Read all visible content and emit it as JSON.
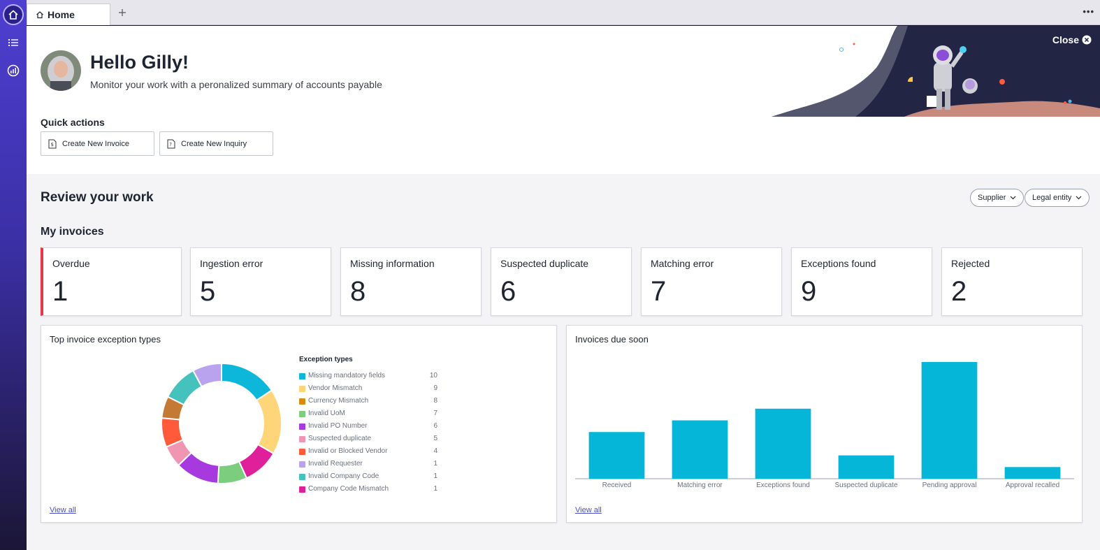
{
  "tabs": {
    "home_label": "Home"
  },
  "header": {
    "greeting": "Hello Gilly!",
    "subtitle": "Monitor your work with a peronalized summary of accounts payable",
    "close_label": "Close"
  },
  "quick_actions": {
    "title": "Quick actions",
    "buttons": [
      {
        "label": "Create New Invoice"
      },
      {
        "label": "Create New Inquiry"
      }
    ]
  },
  "review": {
    "title": "Review your work",
    "filters": [
      {
        "label": "Supplier"
      },
      {
        "label": "Legal entity"
      }
    ]
  },
  "invoices": {
    "title": "My invoices",
    "stats": [
      {
        "label": "Overdue",
        "value": "1"
      },
      {
        "label": "Ingestion error",
        "value": "5"
      },
      {
        "label": "Missing information",
        "value": "8"
      },
      {
        "label": "Suspected duplicate",
        "value": "6"
      },
      {
        "label": "Matching error",
        "value": "7"
      },
      {
        "label": "Exceptions found",
        "value": "9"
      },
      {
        "label": "Rejected",
        "value": "2"
      }
    ]
  },
  "exceptions_panel": {
    "title": "Top invoice exception types",
    "view_all": "View all"
  },
  "due_panel": {
    "title": "Invoices due soon",
    "view_all": "View all"
  },
  "colors": {
    "accent": "#4f3fd1",
    "alert": "#e23a4c",
    "bar": "#06b6d9",
    "link": "#4a4fc8"
  },
  "chart_data": [
    {
      "type": "pie",
      "legend_title": "Exception types",
      "categories": [
        "Missing mandatory fields",
        "Vendor Mismatch",
        "Currency Mismatch",
        "Invalid UoM",
        "Invalid PO Number",
        "Suspected duplicate",
        "Invalid or Blocked Vendor",
        "Invalid Requester",
        "Invalid Company Code",
        "Company Code Mismatch"
      ],
      "values": [
        10,
        9,
        8,
        7,
        6,
        5,
        4,
        1,
        1,
        1
      ],
      "chart_values": [
        8,
        9,
        5,
        4,
        6,
        3,
        4,
        3,
        5,
        4
      ],
      "chart_order": [
        0,
        1,
        9,
        3,
        4,
        5,
        6,
        2,
        8,
        7
      ],
      "colors": [
        "#0cb7d9",
        "#ffd57a",
        "#d98a12",
        "#7ccd7e",
        "#a63adf",
        "#f096b3",
        "#ff5a3a",
        "#b9a3ee",
        "#45c2bd",
        "#e0209a"
      ],
      "chart_colors": [
        "#0cb7d9",
        "#ffd57a",
        "#e0209a",
        "#7ccd7e",
        "#a63adf",
        "#f096b3",
        "#ff5a3a",
        "#c47a35",
        "#45c2bd",
        "#b9a3ee"
      ]
    },
    {
      "type": "bar",
      "categories": [
        "Received",
        "Matching error",
        "Exceptions found",
        "Suspected duplicate",
        "Pending approval",
        "Approval recalled"
      ],
      "values": [
        4,
        5,
        6,
        2,
        10,
        1
      ],
      "ylim": [
        0,
        10
      ],
      "color": "#06b6d9"
    }
  ]
}
